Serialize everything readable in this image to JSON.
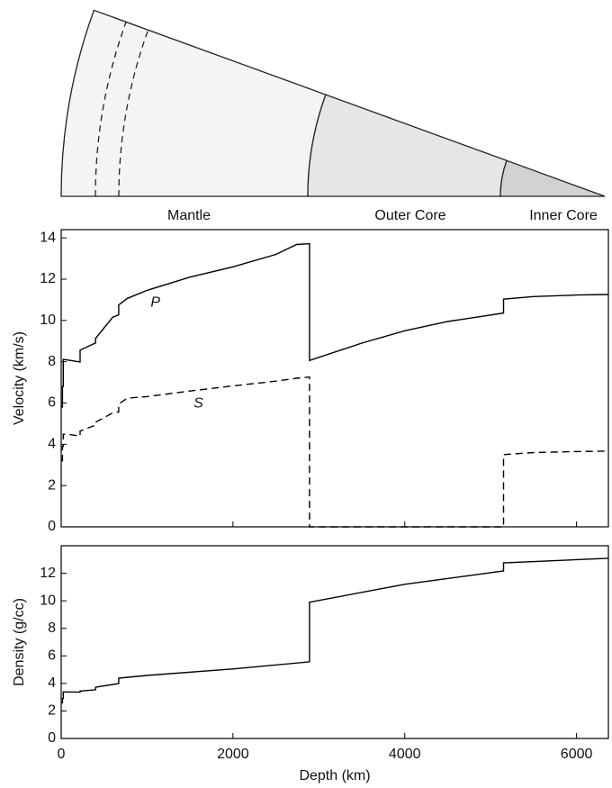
{
  "diagram": {
    "labels": [
      "Mantle",
      "Outer Core",
      "Inner Core"
    ]
  },
  "chart_data": [
    {
      "type": "line",
      "ylabel": "Velocity (km/s)",
      "xlim": [
        0,
        6371
      ],
      "xticks": [
        0,
        2000,
        4000,
        6000
      ],
      "ylim": [
        0,
        14.4
      ],
      "yticks": [
        0,
        2,
        4,
        6,
        8,
        10,
        12,
        14
      ],
      "series": [
        {
          "name": "P",
          "color": "#000000",
          "style": "solid",
          "x": [
            0,
            15,
            15,
            24,
            24,
            80,
            220,
            220,
            400,
            400,
            600,
            670,
            670,
            771,
            1000,
            1500,
            2000,
            2500,
            2741,
            2891,
            2891,
            3500,
            4000,
            4500,
            5150,
            5150,
            5500,
            6000,
            6371
          ],
          "values": [
            5.8,
            5.8,
            6.8,
            6.8,
            8.11,
            8.08,
            7.99,
            8.56,
            8.91,
            9.13,
            10.16,
            10.27,
            10.75,
            11.07,
            11.46,
            12.1,
            12.6,
            13.2,
            13.68,
            13.72,
            8.06,
            8.9,
            9.5,
            9.95,
            10.36,
            11.03,
            11.16,
            11.23,
            11.26
          ]
        },
        {
          "name": "S",
          "color": "#000000",
          "style": "dashed",
          "x": [
            0,
            15,
            15,
            24,
            24,
            80,
            220,
            220,
            400,
            400,
            600,
            670,
            670,
            771,
            1000,
            1500,
            2000,
            2500,
            2741,
            2891,
            2891,
            5150,
            5150,
            5500,
            6000,
            6371
          ],
          "values": [
            3.2,
            3.2,
            3.9,
            3.9,
            4.49,
            4.48,
            4.4,
            4.64,
            4.93,
            5.07,
            5.52,
            5.57,
            5.95,
            6.24,
            6.31,
            6.58,
            6.83,
            7.06,
            7.2,
            7.26,
            0,
            0,
            3.5,
            3.6,
            3.65,
            3.67
          ]
        }
      ]
    },
    {
      "type": "line",
      "ylabel": "Density (g/cc)",
      "xlabel": "Depth (km)",
      "xlim": [
        0,
        6371
      ],
      "xticks": [
        0,
        2000,
        4000,
        6000
      ],
      "ylim": [
        0,
        14
      ],
      "yticks": [
        0,
        2,
        4,
        6,
        8,
        10,
        12
      ],
      "series": [
        {
          "name": null,
          "color": "#000000",
          "style": "solid",
          "x": [
            0,
            15,
            15,
            24,
            24,
            220,
            220,
            400,
            400,
            670,
            670,
            1000,
            2000,
            2891,
            2891,
            4000,
            5150,
            5150,
            6371
          ],
          "values": [
            2.6,
            2.6,
            2.9,
            2.9,
            3.38,
            3.36,
            3.44,
            3.54,
            3.72,
            3.99,
            4.38,
            4.58,
            5.05,
            5.57,
            9.9,
            11.2,
            12.17,
            12.76,
            13.09
          ]
        }
      ]
    }
  ]
}
